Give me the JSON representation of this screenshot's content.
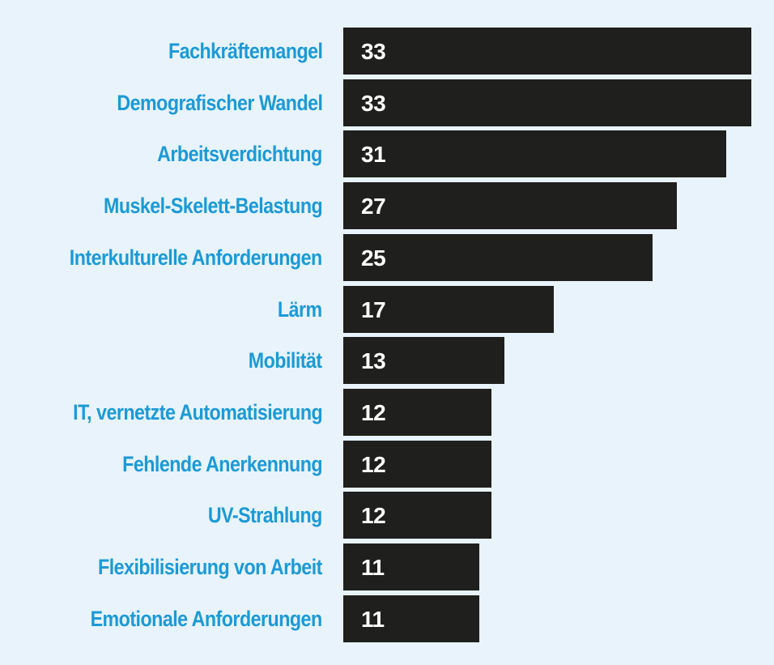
{
  "chart_data": {
    "type": "bar",
    "orientation": "horizontal",
    "categories": [
      "Fachkräftemangel",
      "Demografischer Wandel",
      "Arbeitsverdichtung",
      "Muskel-Skelett-Belastung",
      "Interkulturelle Anforderungen",
      "Lärm",
      "Mobilität",
      "IT, vernetzte Automatisierung",
      "Fehlende Anerkennung",
      "UV-Strahlung",
      "Flexibilisierung von Arbeit",
      "Emotionale Anforderungen"
    ],
    "values": [
      33,
      33,
      31,
      27,
      25,
      17,
      13,
      12,
      12,
      12,
      11,
      11
    ],
    "xlim": [
      0,
      33
    ],
    "grid": false,
    "legend": "none",
    "colors": {
      "bar": "#1f1f1d",
      "label": "#1b9ad6",
      "value_text": "#ffffff",
      "background": "#e8f3fc"
    }
  }
}
